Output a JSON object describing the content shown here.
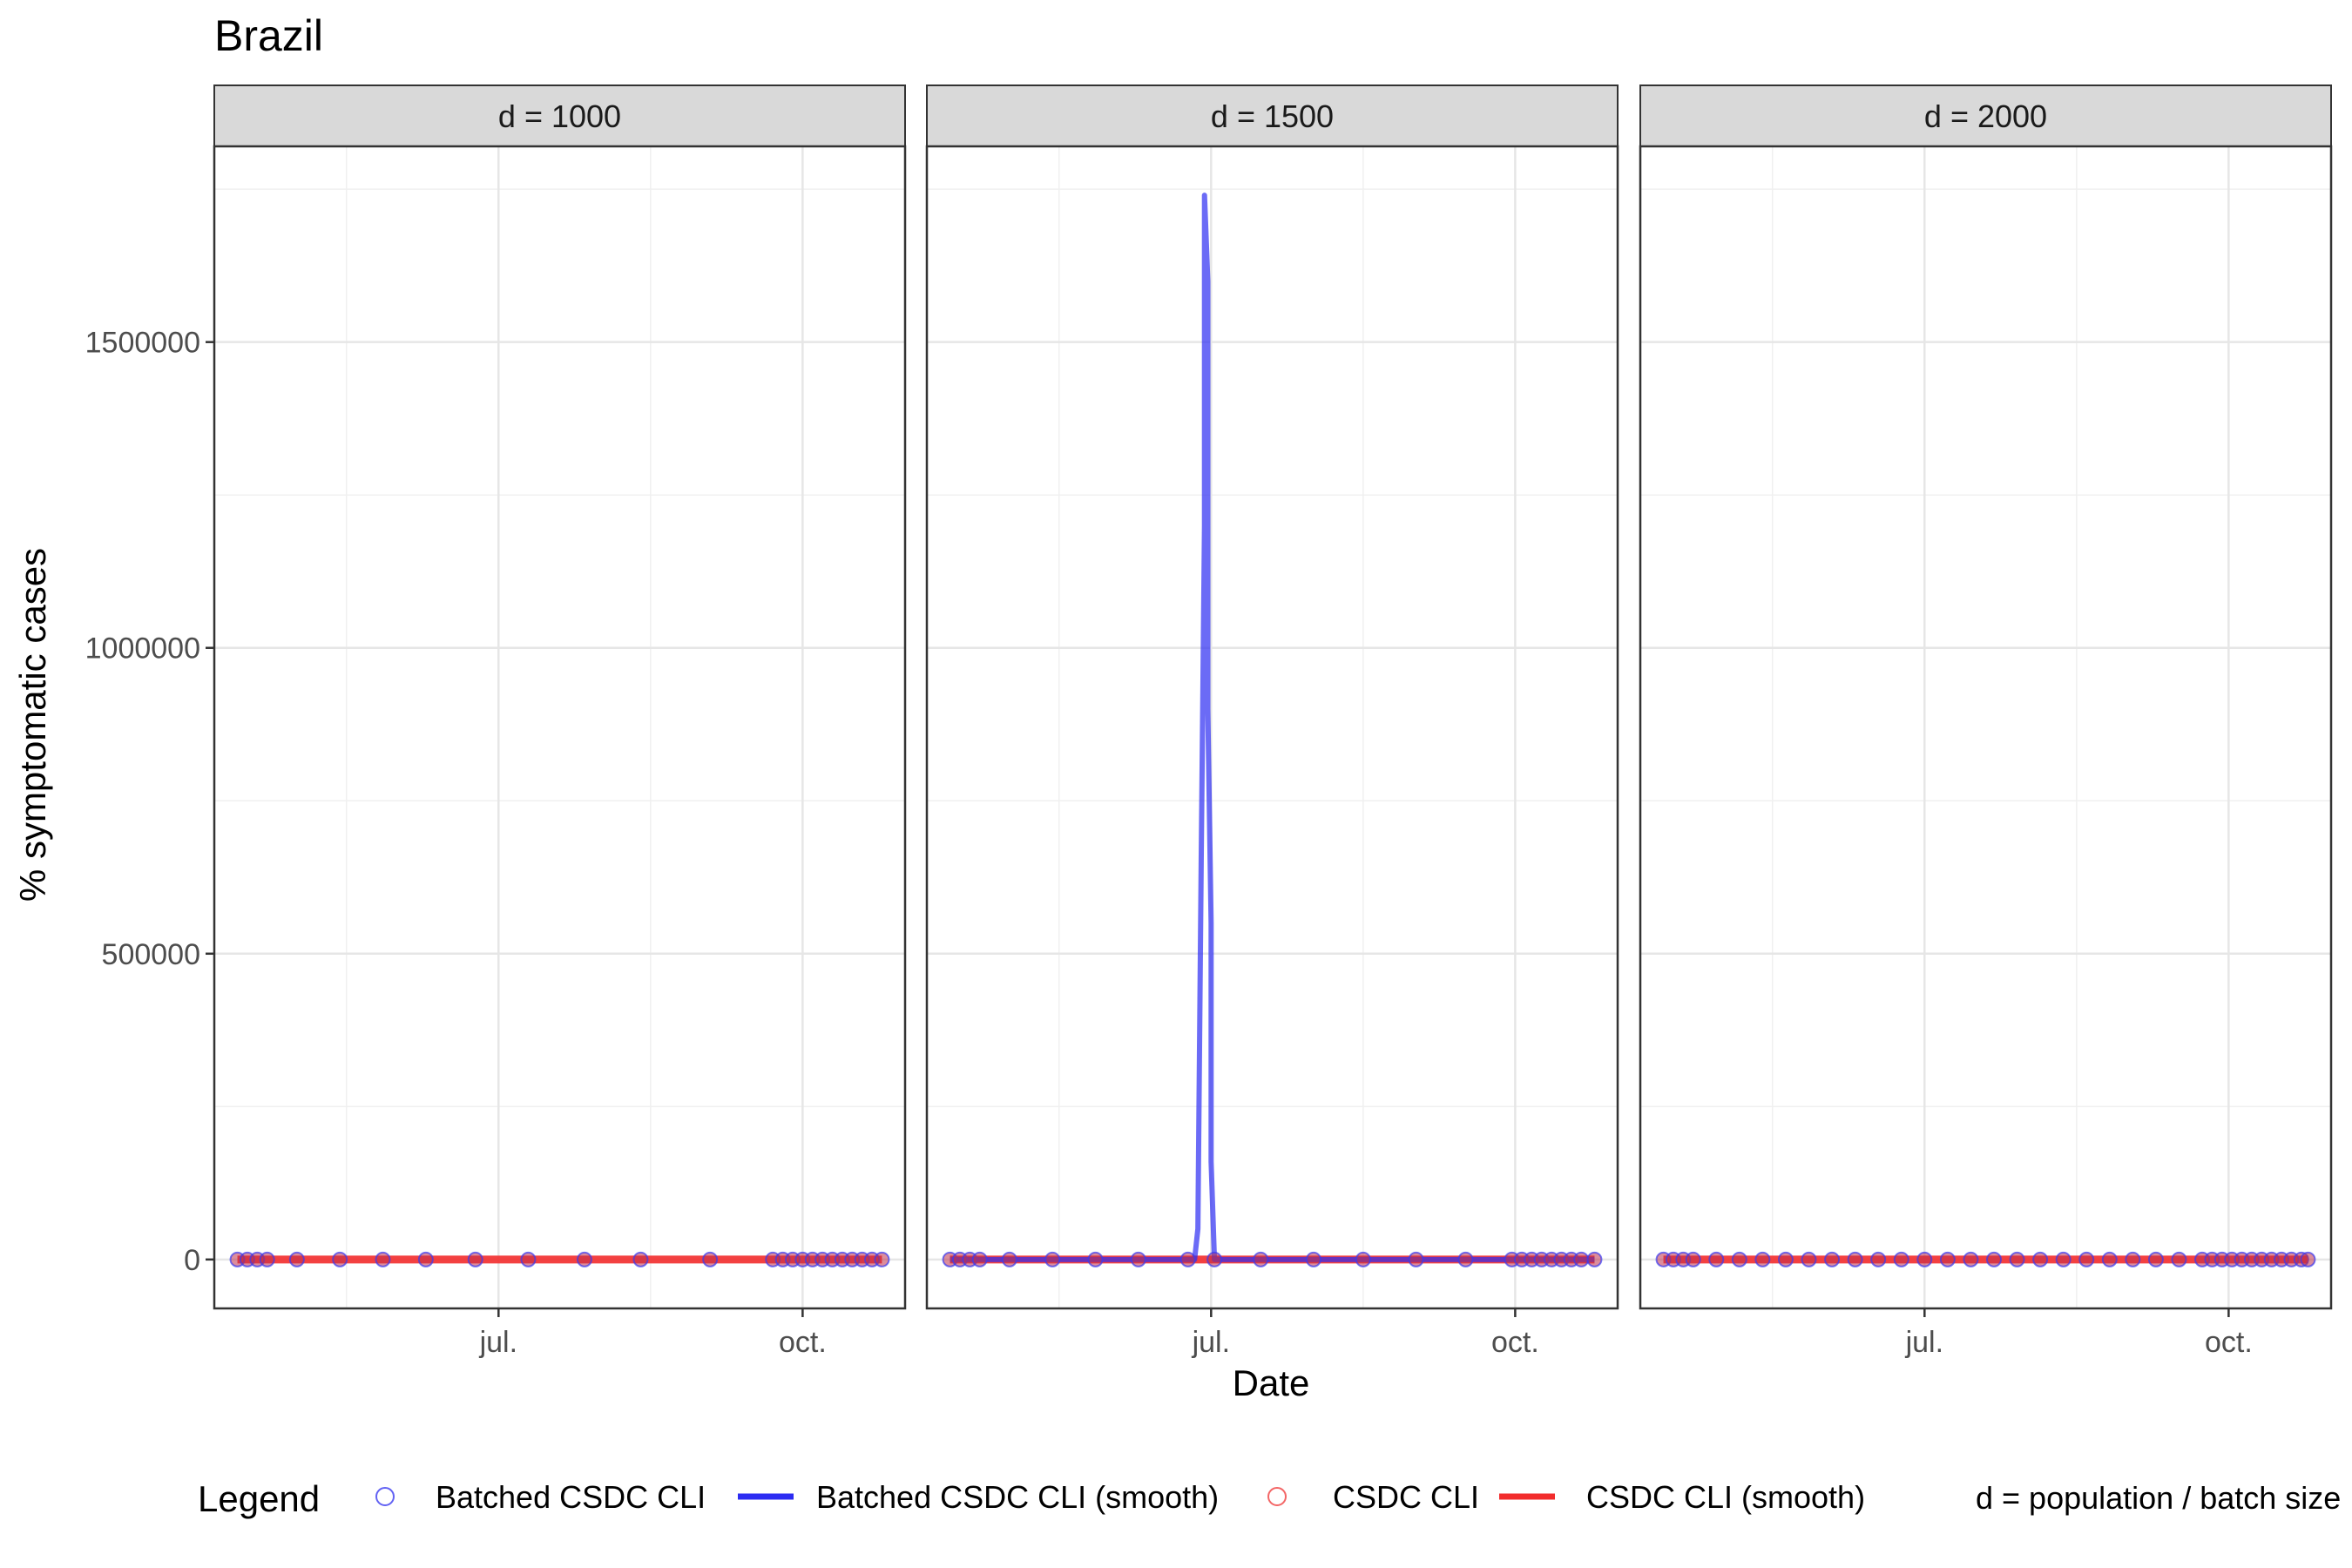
{
  "chart_data": {
    "type": "line",
    "title": "Brazil",
    "xlabel": "Date",
    "ylabel": "% symptomatic cases",
    "ylim": [
      -80000,
      1820000
    ],
    "y_ticks": [
      0,
      500000,
      1000000,
      1500000
    ],
    "y_tick_labels": [
      "0",
      "500000",
      "1000000",
      "1500000"
    ],
    "x_range": [
      "2020-04-06",
      "2020-11-01"
    ],
    "x_ticks": [
      {
        "date": "2020-07-01",
        "label": "jul."
      },
      {
        "date": "2020-10-01",
        "label": "oct."
      }
    ],
    "grid": true,
    "legend_position": "bottom",
    "legend": {
      "title": "Legend",
      "items": [
        {
          "label": "Batched CSDC CLI",
          "kind": "point",
          "color": "#3b3bf0"
        },
        {
          "label": "Batched CSDC CLI (smooth)",
          "kind": "line",
          "color": "#2c2cf2"
        },
        {
          "label": "CSDC CLI",
          "kind": "point",
          "color": "#f04040"
        },
        {
          "label": "CSDC CLI (smooth)",
          "kind": "line",
          "color": "#f22c2c"
        }
      ],
      "note": "d = population / batch size"
    },
    "panels": [
      {
        "strip": "d = 1000",
        "series": [
          {
            "name": "CSDC CLI (smooth)",
            "x": [
              "2020-04-13",
              "2020-10-25"
            ],
            "y": [
              0,
              0
            ]
          },
          {
            "name": "Batched CSDC CLI",
            "x": [
              "2020-04-13",
              "2020-04-16",
              "2020-04-19",
              "2020-04-22",
              "2020-05-01",
              "2020-05-14",
              "2020-05-27",
              "2020-06-09",
              "2020-06-24",
              "2020-07-10",
              "2020-07-27",
              "2020-08-13",
              "2020-09-03",
              "2020-09-22",
              "2020-09-25",
              "2020-09-28",
              "2020-10-01",
              "2020-10-04",
              "2020-10-07",
              "2020-10-10",
              "2020-10-13",
              "2020-10-16",
              "2020-10-19",
              "2020-10-22",
              "2020-10-25"
            ],
            "y": [
              0,
              0,
              0,
              0,
              0,
              0,
              0,
              0,
              0,
              0,
              0,
              0,
              0,
              0,
              0,
              0,
              0,
              0,
              0,
              0,
              0,
              0,
              0,
              0,
              0
            ]
          }
        ]
      },
      {
        "strip": "d = 1500",
        "series": [
          {
            "name": "CSDC CLI (smooth)",
            "x": [
              "2020-04-13",
              "2020-10-25"
            ],
            "y": [
              0,
              0
            ]
          },
          {
            "name": "Batched CSDC CLI (smooth)",
            "x": [
              "2020-04-13",
              "2020-06-26",
              "2020-06-27",
              "2020-06-28",
              "2020-06-29",
              "2020-06-29",
              "2020-06-30",
              "2020-06-30",
              "2020-07-01",
              "2020-07-01",
              "2020-07-02",
              "2020-10-25"
            ],
            "y": [
              0,
              0,
              50000,
              650000,
              1200000,
              1740000,
              1600000,
              900000,
              550000,
              160000,
              0,
              0
            ]
          },
          {
            "name": "Batched CSDC CLI",
            "x": [
              "2020-04-13",
              "2020-04-16",
              "2020-04-19",
              "2020-04-22",
              "2020-05-01",
              "2020-05-14",
              "2020-05-27",
              "2020-06-09",
              "2020-06-24",
              "2020-07-02",
              "2020-07-16",
              "2020-08-01",
              "2020-08-16",
              "2020-09-01",
              "2020-09-16",
              "2020-09-30",
              "2020-10-03",
              "2020-10-06",
              "2020-10-09",
              "2020-10-12",
              "2020-10-15",
              "2020-10-18",
              "2020-10-21",
              "2020-10-25"
            ],
            "y": [
              0,
              0,
              0,
              0,
              0,
              0,
              0,
              0,
              0,
              0,
              0,
              0,
              0,
              0,
              0,
              0,
              0,
              0,
              0,
              0,
              0,
              0,
              0,
              0
            ]
          }
        ]
      },
      {
        "strip": "d = 2000",
        "series": [
          {
            "name": "CSDC CLI (smooth)",
            "x": [
              "2020-04-13",
              "2020-10-25"
            ],
            "y": [
              0,
              0
            ]
          },
          {
            "name": "Batched CSDC CLI",
            "x": [
              "2020-04-13",
              "2020-04-16",
              "2020-04-19",
              "2020-04-22",
              "2020-04-29",
              "2020-05-06",
              "2020-05-13",
              "2020-05-20",
              "2020-05-27",
              "2020-06-03",
              "2020-06-10",
              "2020-06-17",
              "2020-06-24",
              "2020-07-01",
              "2020-07-08",
              "2020-07-15",
              "2020-07-22",
              "2020-07-29",
              "2020-08-05",
              "2020-08-12",
              "2020-08-19",
              "2020-08-26",
              "2020-09-02",
              "2020-09-09",
              "2020-09-16",
              "2020-09-23",
              "2020-09-26",
              "2020-09-29",
              "2020-10-02",
              "2020-10-05",
              "2020-10-08",
              "2020-10-11",
              "2020-10-14",
              "2020-10-17",
              "2020-10-20",
              "2020-10-23",
              "2020-10-25"
            ],
            "y": [
              0,
              0,
              0,
              0,
              0,
              0,
              0,
              0,
              0,
              0,
              0,
              0,
              0,
              0,
              0,
              0,
              0,
              0,
              0,
              0,
              0,
              0,
              0,
              0,
              0,
              0,
              0,
              0,
              0,
              0,
              0,
              0,
              0,
              0,
              0,
              0,
              0
            ]
          }
        ]
      }
    ]
  }
}
